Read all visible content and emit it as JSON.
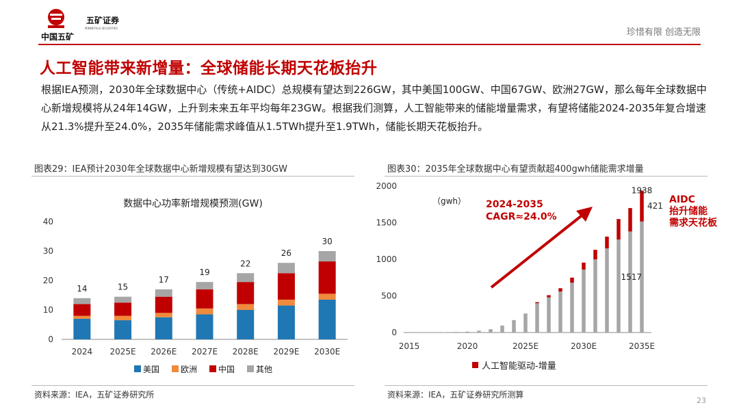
{
  "header": {
    "logo_text": "中国五矿",
    "logo_company": "五矿证券",
    "logo_company_en": "MINMETALS SECURITIES",
    "slogan": "珍惜有限  创造无限"
  },
  "title": "人工智能带来新增量：全球储能长期天花板抬升",
  "summary": "根据IEA预测，2030年全球数据中心（传统+AIDC）总规模有望达到226GW，其中美国100GW、中国67GW、欧洲27GW，那么每年全球数据中心新增规模将从24年14GW，上升到未来五年平均每年23GW。根据我们测算，人工智能带来的储能增量需求，有望将储能2024-2035年复合增速从21.3%提升至24.0%，2035年储能需求峰值从1.5TWh提升至1.9TWh，储能长期天花板抬升。",
  "left_figure": {
    "caption": "图表29：IEA预计2030年全球数据中心新增规模有望达到30GW",
    "source": "资料来源：IEA，五矿证券研究所"
  },
  "right_figure": {
    "caption": "图表30：2035年全球数据中心有望贡献超400gwh储能需求增量",
    "source": "资料来源：IEA，五矿证券研究所测算"
  },
  "colors": {
    "accent_red": "#c00000",
    "us": "#1f77b4",
    "eu": "#f08a3c",
    "cn": "#c00000",
    "other": "#a6a6a6",
    "base_gray": "#a6a6a6",
    "ai_red": "#c00000"
  },
  "page_number": "23",
  "chart_data": [
    {
      "type": "bar",
      "stacked": true,
      "title": "数据中心功率新增规模预测(GW)",
      "categories": [
        "2024",
        "2025E",
        "2026E",
        "2027E",
        "2028E",
        "2029E",
        "2030E"
      ],
      "series": [
        {
          "name": "美国",
          "values": [
            7,
            6.5,
            7.5,
            8.5,
            10,
            11.5,
            13.5
          ]
        },
        {
          "name": "欧洲",
          "values": [
            1,
            1.5,
            1.5,
            2,
            2,
            2,
            2
          ]
        },
        {
          "name": "中国",
          "values": [
            4,
            4.5,
            5.5,
            6.5,
            7.5,
            9,
            11
          ]
        },
        {
          "name": "其他",
          "values": [
            2,
            2,
            2.5,
            2.5,
            3,
            3.5,
            3.5
          ]
        }
      ],
      "totals": [
        "14",
        "15",
        "17",
        "19",
        "22",
        "26",
        "30"
      ],
      "ylim": [
        0,
        40
      ],
      "yticks": [
        0,
        10,
        20,
        30,
        40
      ],
      "legend_position": "bottom"
    },
    {
      "type": "bar",
      "stacked": true,
      "unit_label": "（gwh）",
      "x": [
        2015,
        2016,
        2017,
        2018,
        2019,
        2020,
        2021,
        2022,
        2023,
        2024,
        2025,
        2026,
        2027,
        2028,
        2029,
        2030,
        2031,
        2032,
        2033,
        2034,
        2035
      ],
      "xtick_labels": [
        {
          "x": 2015,
          "label": "2015"
        },
        {
          "x": 2020,
          "label": "2020"
        },
        {
          "x": 2025,
          "label": "2025E"
        },
        {
          "x": 2030,
          "label": "2030E"
        },
        {
          "x": 2035,
          "label": "2035E"
        }
      ],
      "series": [
        {
          "name": "",
          "values": [
            1,
            2,
            3,
            4,
            8,
            12,
            25,
            45,
            95,
            170,
            260,
            400,
            480,
            560,
            680,
            860,
            1000,
            1150,
            1270,
            1380,
            1517
          ]
        },
        {
          "name": "人工智能驱动-增量",
          "values": [
            0,
            0,
            0,
            0,
            0,
            0,
            0,
            0,
            0,
            0,
            0,
            15,
            30,
            45,
            70,
            95,
            130,
            160,
            280,
            320,
            421
          ]
        }
      ],
      "annotations": [
        {
          "text": "1938",
          "x": 2035,
          "y": 1938
        },
        {
          "text": "421",
          "x": 2035,
          "y": 1727
        },
        {
          "text": "1517",
          "x": 2035,
          "y": 758
        }
      ],
      "callout_cagr": [
        "2024-2035",
        "CAGR≈24.0%"
      ],
      "callout_aidc": [
        "AIDC",
        "抬升储能",
        "需求天花板"
      ],
      "ylim": [
        0,
        2000
      ],
      "yticks": [
        0,
        500,
        1000,
        1500,
        2000
      ],
      "legend_position": "bottom"
    }
  ]
}
